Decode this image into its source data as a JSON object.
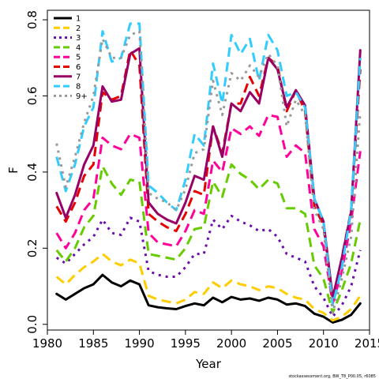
{
  "chart_data": {
    "type": "line",
    "xlabel": "Year",
    "ylabel": "F",
    "xlim": [
      1980,
      2015
    ],
    "ylim": [
      -0.015,
      0.825
    ],
    "x_ticks": [
      1980,
      1985,
      1990,
      1995,
      2000,
      2005,
      2010,
      2015
    ],
    "x_tick_labels": [
      "1980",
      "1985",
      "1990",
      "1995",
      "2000",
      "2005",
      "2010",
      "2015"
    ],
    "y_ticks": [
      0.0,
      0.2,
      0.4,
      0.6,
      0.8
    ],
    "y_tick_labels": [
      "0.0",
      "0.2",
      "0.4",
      "0.6",
      "0.8"
    ],
    "grid": false,
    "legend_position": "top-left",
    "x": [
      1981,
      1982,
      1983,
      1984,
      1985,
      1986,
      1987,
      1988,
      1989,
      1990,
      1991,
      1992,
      1993,
      1994,
      1995,
      1996,
      1997,
      1998,
      1999,
      2000,
      2001,
      2002,
      2003,
      2004,
      2005,
      2006,
      2007,
      2008,
      2009,
      2010,
      2011,
      2012,
      2013,
      2014
    ],
    "series": [
      {
        "name": "1",
        "color": "#000000",
        "dash": "solid",
        "width": 3,
        "values": [
          0.08,
          0.065,
          0.08,
          0.095,
          0.105,
          0.13,
          0.11,
          0.1,
          0.115,
          0.105,
          0.05,
          0.045,
          0.042,
          0.04,
          0.048,
          0.055,
          0.05,
          0.07,
          0.058,
          0.072,
          0.065,
          0.068,
          0.062,
          0.07,
          0.065,
          0.052,
          0.055,
          0.048,
          0.028,
          0.02,
          0.005,
          0.012,
          0.025,
          0.055
        ]
      },
      {
        "name": "2",
        "color": "#ffcc00",
        "dash": "long",
        "width": 3,
        "values": [
          0.125,
          0.105,
          0.13,
          0.15,
          0.165,
          0.185,
          0.165,
          0.155,
          0.17,
          0.16,
          0.075,
          0.065,
          0.06,
          0.055,
          0.065,
          0.085,
          0.08,
          0.11,
          0.095,
          0.115,
          0.105,
          0.1,
          0.09,
          0.1,
          0.095,
          0.08,
          0.07,
          0.065,
          0.04,
          0.03,
          0.01,
          0.02,
          0.04,
          0.075
        ]
      },
      {
        "name": "3",
        "color": "#6a0dad",
        "dash": "dot",
        "width": 3,
        "values": [
          0.175,
          0.16,
          0.185,
          0.21,
          0.23,
          0.275,
          0.24,
          0.235,
          0.28,
          0.27,
          0.14,
          0.13,
          0.125,
          0.125,
          0.15,
          0.185,
          0.185,
          0.275,
          0.25,
          0.285,
          0.27,
          0.26,
          0.245,
          0.25,
          0.23,
          0.185,
          0.175,
          0.165,
          0.1,
          0.07,
          0.02,
          0.05,
          0.1,
          0.195
        ]
      },
      {
        "name": "4",
        "color": "#66cc00",
        "dash": "long",
        "width": 3,
        "values": [
          0.195,
          0.165,
          0.2,
          0.255,
          0.285,
          0.415,
          0.37,
          0.34,
          0.38,
          0.375,
          0.185,
          0.18,
          0.175,
          0.17,
          0.2,
          0.25,
          0.255,
          0.375,
          0.335,
          0.42,
          0.395,
          0.38,
          0.355,
          0.38,
          0.37,
          0.305,
          0.305,
          0.29,
          0.155,
          0.12,
          0.03,
          0.09,
          0.16,
          0.275
        ]
      },
      {
        "name": "5",
        "color": "#ff0099",
        "dash": "long",
        "width": 3,
        "values": [
          0.24,
          0.2,
          0.24,
          0.3,
          0.33,
          0.49,
          0.47,
          0.46,
          0.5,
          0.49,
          0.24,
          0.215,
          0.21,
          0.205,
          0.245,
          0.3,
          0.29,
          0.43,
          0.4,
          0.515,
          0.5,
          0.52,
          0.495,
          0.55,
          0.545,
          0.44,
          0.47,
          0.45,
          0.25,
          0.205,
          0.055,
          0.14,
          0.27,
          0.455
        ]
      },
      {
        "name": "6",
        "color": "#e60000",
        "dash": "long",
        "width": 3,
        "values": [
          0.31,
          0.27,
          0.32,
          0.39,
          0.42,
          0.61,
          0.59,
          0.6,
          0.72,
          0.68,
          0.29,
          0.27,
          0.255,
          0.245,
          0.29,
          0.35,
          0.34,
          0.52,
          0.45,
          0.58,
          0.58,
          0.65,
          0.6,
          0.7,
          0.68,
          0.56,
          0.615,
          0.56,
          0.31,
          0.26,
          0.065,
          0.175,
          0.3,
          0.67
        ]
      },
      {
        "name": "7",
        "color": "#990066",
        "dash": "solid",
        "width": 3,
        "values": [
          0.345,
          0.28,
          0.34,
          0.42,
          0.47,
          0.625,
          0.585,
          0.59,
          0.71,
          0.725,
          0.32,
          0.29,
          0.275,
          0.265,
          0.32,
          0.39,
          0.38,
          0.52,
          0.44,
          0.58,
          0.56,
          0.61,
          0.58,
          0.7,
          0.67,
          0.57,
          0.615,
          0.575,
          0.33,
          0.27,
          0.07,
          0.175,
          0.295,
          0.72
        ]
      },
      {
        "name": "8",
        "color": "#33ccff",
        "dash": "long",
        "width": 3,
        "values": [
          0.44,
          0.35,
          0.42,
          0.52,
          0.57,
          0.77,
          0.69,
          0.7,
          0.79,
          0.79,
          0.365,
          0.345,
          0.32,
          0.3,
          0.38,
          0.5,
          0.47,
          0.685,
          0.58,
          0.76,
          0.71,
          0.75,
          0.64,
          0.76,
          0.72,
          0.6,
          0.61,
          0.57,
          0.33,
          0.27,
          0.05,
          0.15,
          0.3,
          0.7
        ]
      },
      {
        "name": "9+",
        "color": "#999999",
        "dash": "dot",
        "width": 3,
        "values": [
          0.475,
          0.36,
          0.44,
          0.53,
          0.6,
          0.75,
          0.7,
          0.7,
          0.76,
          0.77,
          0.345,
          0.33,
          0.32,
          0.3,
          0.355,
          0.45,
          0.46,
          0.64,
          0.55,
          0.66,
          0.64,
          0.68,
          0.65,
          0.71,
          0.68,
          0.52,
          0.59,
          0.55,
          0.3,
          0.25,
          0.03,
          0.12,
          0.23,
          0.56
        ]
      }
    ]
  },
  "footer": "stockassessment.org, BW_T8_P00.05, r6085"
}
